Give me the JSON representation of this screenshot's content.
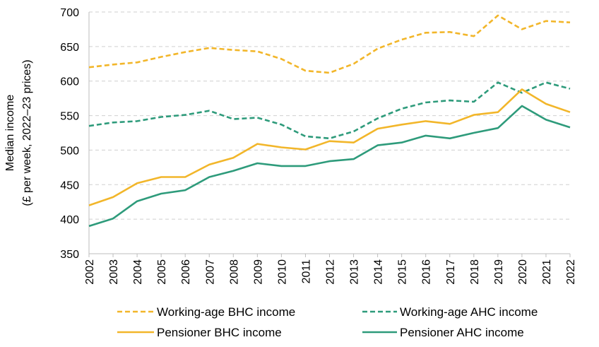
{
  "chart_data": {
    "type": "line",
    "title": "",
    "xlabel": "",
    "ylabel": [
      "Median income",
      "(£ per week, 2022–23 prices)"
    ],
    "ylim": [
      350,
      700
    ],
    "yticks": [
      350,
      400,
      450,
      500,
      550,
      600,
      650,
      700
    ],
    "grid": true,
    "legend_position": "bottom",
    "x": [
      "2002",
      "2003",
      "2004",
      "2005",
      "2006",
      "2007",
      "2008",
      "2009",
      "2010",
      "2011",
      "2012",
      "2013",
      "2014",
      "2015",
      "2016",
      "2017",
      "2018",
      "2019",
      "2020",
      "2021",
      "2022"
    ],
    "series": [
      {
        "name": "Working-age BHC income",
        "color": "#F2B62A",
        "style": "dashed",
        "values": [
          620,
          624,
          627,
          635,
          642,
          648,
          645,
          643,
          632,
          615,
          612,
          625,
          647,
          660,
          670,
          671,
          665,
          695,
          675,
          687,
          685
        ]
      },
      {
        "name": "Working-age AHC income",
        "color": "#2E9B7B",
        "style": "dashed",
        "values": [
          535,
          540,
          542,
          548,
          551,
          557,
          545,
          547,
          537,
          520,
          517,
          527,
          546,
          560,
          569,
          572,
          570,
          598,
          583,
          598,
          589
        ]
      },
      {
        "name": "Pensioner BHC income",
        "color": "#F2B62A",
        "style": "solid",
        "values": [
          420,
          432,
          452,
          461,
          461,
          479,
          489,
          509,
          504,
          501,
          513,
          511,
          531,
          537,
          542,
          538,
          551,
          555,
          588,
          567,
          555
        ]
      },
      {
        "name": "Pensioner AHC income",
        "color": "#2E9B7B",
        "style": "solid",
        "values": [
          390,
          401,
          426,
          437,
          442,
          461,
          470,
          481,
          477,
          477,
          484,
          487,
          507,
          511,
          521,
          517,
          525,
          532,
          564,
          544,
          533
        ]
      }
    ]
  }
}
